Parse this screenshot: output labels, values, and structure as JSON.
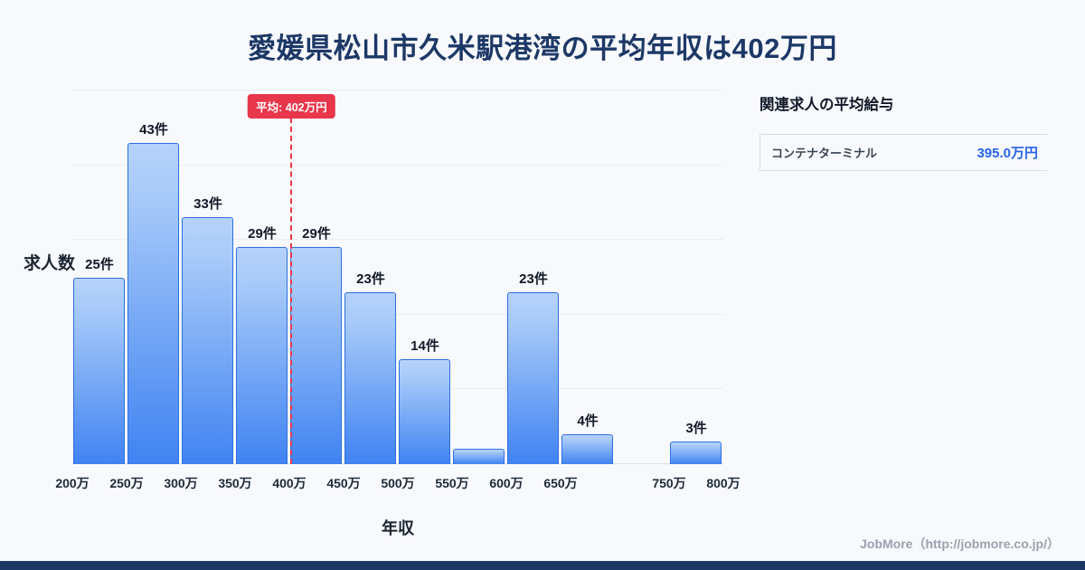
{
  "title": "愛媛県松山市久米駅港湾の平均年収は402万円",
  "chart_data": {
    "type": "bar",
    "title": "愛媛県松山市久米駅港湾の平均年収は402万円",
    "ylabel": "求人数",
    "xlabel": "年収",
    "ylim": [
      0,
      50
    ],
    "grid_step": 10,
    "x_range": [
      200,
      800
    ],
    "bin_width": 50,
    "bins": [
      {
        "start": 200,
        "end": 250,
        "count": 25,
        "label": "25件"
      },
      {
        "start": 250,
        "end": 300,
        "count": 43,
        "label": "43件"
      },
      {
        "start": 300,
        "end": 350,
        "count": 33,
        "label": "33件"
      },
      {
        "start": 350,
        "end": 400,
        "count": 29,
        "label": "29件"
      },
      {
        "start": 400,
        "end": 450,
        "count": 29,
        "label": "29件"
      },
      {
        "start": 450,
        "end": 500,
        "count": 23,
        "label": "23件"
      },
      {
        "start": 500,
        "end": 550,
        "count": 14,
        "label": "14件"
      },
      {
        "start": 550,
        "end": 600,
        "count": 2,
        "label": ""
      },
      {
        "start": 600,
        "end": 650,
        "count": 23,
        "label": "23件"
      },
      {
        "start": 650,
        "end": 700,
        "count": 4,
        "label": "4件"
      },
      {
        "start": 700,
        "end": 750,
        "count": 0,
        "label": ""
      },
      {
        "start": 750,
        "end": 800,
        "count": 3,
        "label": "3件"
      }
    ],
    "x_ticks": [
      {
        "value": 200,
        "label": "200万"
      },
      {
        "value": 250,
        "label": "250万"
      },
      {
        "value": 300,
        "label": "300万"
      },
      {
        "value": 350,
        "label": "350万"
      },
      {
        "value": 400,
        "label": "400万"
      },
      {
        "value": 450,
        "label": "450万"
      },
      {
        "value": 500,
        "label": "500万"
      },
      {
        "value": 550,
        "label": "550万"
      },
      {
        "value": 600,
        "label": "600万"
      },
      {
        "value": 650,
        "label": "650万"
      },
      {
        "value": 750,
        "label": "750万"
      },
      {
        "value": 800,
        "label": "800万"
      }
    ],
    "average_line": {
      "value": 402,
      "label": "平均: 402万円"
    },
    "legend": "none",
    "grid": "on"
  },
  "side_panel": {
    "header": "関連求人の平均給与",
    "rows": [
      {
        "name": "コンテナターミナル",
        "value": "395.0万円"
      }
    ]
  },
  "footer": {
    "credit": "JobMore（http://jobmore.co.jp/）"
  },
  "colors": {
    "title": "#1d3866",
    "bar_gradient_top": "#b5d2fa",
    "bar_gradient_bottom": "#4083f2",
    "bar_border": "#2e6fe0",
    "average_red": "#e8364a",
    "value_blue": "#2563eb",
    "footer_bar": "#1d3866",
    "background": "#f7f9fc"
  }
}
